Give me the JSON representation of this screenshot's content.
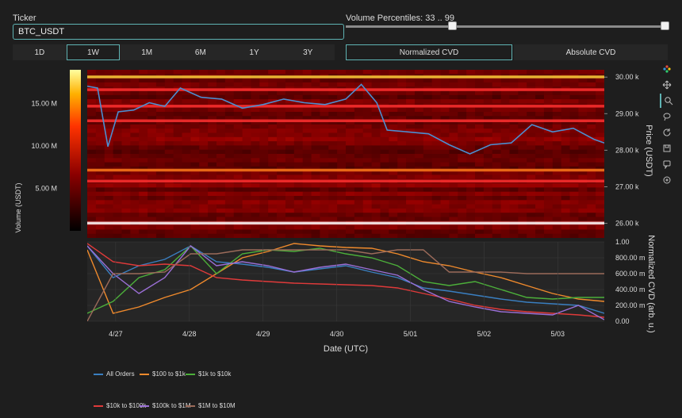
{
  "controls": {
    "ticker_label": "Ticker",
    "ticker_value": "BTC_USDT",
    "percentile_label": "Volume Percentiles: 33 .. 99",
    "percentile_low": 33,
    "percentile_high": 99,
    "periods": [
      "1D",
      "1W",
      "1M",
      "6M",
      "1Y",
      "3Y"
    ],
    "active_period": "1W",
    "cvd_modes": [
      "Normalized CVD",
      "Absolute CVD"
    ],
    "active_cvd_mode": "Normalized CVD"
  },
  "modebar_icons": [
    "plotly-logo-icon",
    "pan-icon",
    "zoom-icon",
    "lasso-icon",
    "reset-icon",
    "download-icon",
    "comment-icon",
    "target-icon"
  ],
  "colors": {
    "price_line": "#4c8ed0",
    "all_orders": "#3a7fc1",
    "100_to_1k": "#f08a2c",
    "1k_to_10k": "#4caf3a",
    "10k_to_100k": "#e03a3a",
    "100k_to_1m": "#9b6fd6",
    "1m_to_10m": "#9c6b5a"
  },
  "chart_data": [
    {
      "type": "heatmap",
      "title": "",
      "xlabel": "",
      "ylabel": "Price (USDT)",
      "colorbar_label": "Volume (USDT)",
      "colorbar_ticks": [
        "5.00 M",
        "10.00 M",
        "15.00 M"
      ],
      "colorbar_range": [
        0,
        19000000
      ],
      "y_ticks": [
        "26.00 k",
        "27.00 k",
        "28.00 k",
        "29.00 k",
        "30.00 k"
      ],
      "ylim": [
        25600,
        30200
      ],
      "price_series": {
        "name": "",
        "x": [
          0,
          0.02,
          0.04,
          0.06,
          0.09,
          0.12,
          0.15,
          0.18,
          0.22,
          0.26,
          0.3,
          0.34,
          0.38,
          0.42,
          0.46,
          0.5,
          0.53,
          0.56,
          0.58,
          0.62,
          0.66,
          0.7,
          0.74,
          0.78,
          0.82,
          0.86,
          0.9,
          0.94,
          0.98,
          1.0
        ],
        "y": [
          29750,
          29700,
          28100,
          29050,
          29100,
          29300,
          29200,
          29700,
          29450,
          29400,
          29150,
          29250,
          29400,
          29300,
          29250,
          29400,
          29800,
          29300,
          28550,
          28500,
          28450,
          28150,
          27900,
          28150,
          28200,
          28700,
          28500,
          28600,
          28300,
          28200
        ]
      },
      "bright_levels": [
        {
          "price": 30000,
          "volume": 17000000
        },
        {
          "price": 29650,
          "volume": 8000000
        },
        {
          "price": 29200,
          "volume": 5500000
        },
        {
          "price": 28800,
          "volume": 6500000
        },
        {
          "price": 27450,
          "volume": 10000000
        },
        {
          "price": 27150,
          "volume": 6500000
        },
        {
          "price": 26000,
          "volume": 19000000
        }
      ]
    },
    {
      "type": "line",
      "title": "",
      "xlabel": "Date (UTC)",
      "ylabel": "Normalized CVD (arb. u.)",
      "x_ticks": [
        "4/27",
        "4/28",
        "4/29",
        "4/30",
        "5/01",
        "5/02",
        "5/03"
      ],
      "y_ticks": [
        "0.00",
        "200.00 m",
        "400.00 m",
        "600.00 m",
        "800.00 m",
        "1.00"
      ],
      "ylim": [
        0,
        1
      ],
      "x": [
        0,
        0.05,
        0.1,
        0.15,
        0.2,
        0.25,
        0.3,
        0.35,
        0.4,
        0.45,
        0.5,
        0.55,
        0.6,
        0.65,
        0.7,
        0.75,
        0.8,
        0.85,
        0.9,
        0.95,
        1.0
      ],
      "series": [
        {
          "name": "All Orders",
          "values": [
            0.95,
            0.55,
            0.7,
            0.78,
            0.95,
            0.75,
            0.72,
            0.68,
            0.62,
            0.66,
            0.7,
            0.62,
            0.55,
            0.42,
            0.38,
            0.33,
            0.28,
            0.24,
            0.22,
            0.2,
            0.1
          ]
        },
        {
          "name": "$100 to $1k",
          "values": [
            0.9,
            0.1,
            0.18,
            0.3,
            0.4,
            0.6,
            0.8,
            0.88,
            0.98,
            0.95,
            0.93,
            0.92,
            0.85,
            0.75,
            0.7,
            0.62,
            0.55,
            0.45,
            0.35,
            0.28,
            0.25
          ]
        },
        {
          "name": "$1k to $10k",
          "values": [
            0.1,
            0.25,
            0.55,
            0.65,
            0.95,
            0.6,
            0.85,
            0.9,
            0.88,
            0.92,
            0.85,
            0.8,
            0.7,
            0.5,
            0.45,
            0.5,
            0.4,
            0.3,
            0.28,
            0.3,
            0.3
          ]
        },
        {
          "name": "$10k to $100k",
          "values": [
            0.98,
            0.75,
            0.7,
            0.72,
            0.7,
            0.55,
            0.52,
            0.5,
            0.48,
            0.47,
            0.46,
            0.45,
            0.42,
            0.35,
            0.28,
            0.2,
            0.15,
            0.12,
            0.1,
            0.08,
            0.05
          ]
        },
        {
          "name": "$100k to $1M",
          "values": [
            0.95,
            0.6,
            0.35,
            0.55,
            0.95,
            0.7,
            0.75,
            0.7,
            0.62,
            0.68,
            0.72,
            0.65,
            0.58,
            0.4,
            0.25,
            0.18,
            0.12,
            0.1,
            0.08,
            0.2,
            0.02
          ]
        },
        {
          "name": "$1M to $10M",
          "values": [
            0.0,
            0.6,
            0.6,
            0.62,
            0.85,
            0.85,
            0.9,
            0.9,
            0.9,
            0.9,
            0.9,
            0.85,
            0.9,
            0.9,
            0.62,
            0.62,
            0.62,
            0.6,
            0.6,
            0.6,
            0.6
          ]
        }
      ]
    }
  ]
}
